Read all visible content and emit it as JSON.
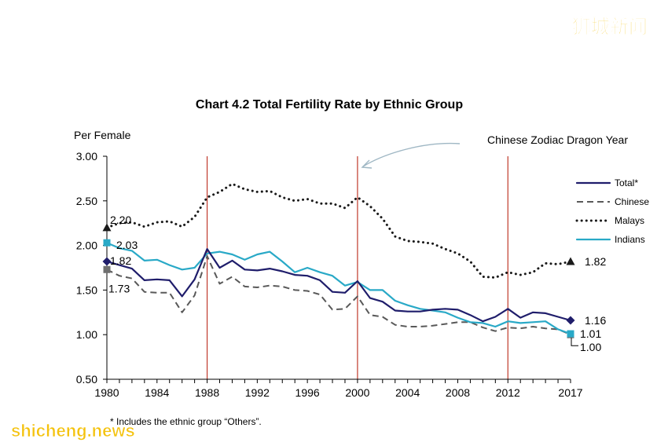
{
  "watermark_top": "狮城新闻",
  "watermark_bottom": "shicheng.news",
  "footnote": "*  Includes the ethnic group “Others”.",
  "chart_data": {
    "type": "line",
    "title": "Chart 4.2  Total Fertility Rate by Ethnic Group",
    "ylabel": "Per Female",
    "xlabel": "",
    "xlim": [
      1980,
      2017
    ],
    "ylim": [
      0.5,
      3.0
    ],
    "x_ticks": [
      "1980",
      "1984",
      "1988",
      "1992",
      "1996",
      "2000",
      "2004",
      "2008",
      "2012",
      "2017"
    ],
    "y_ticks": [
      "0.50",
      "1.00",
      "1.50",
      "2.00",
      "2.50",
      "3.00"
    ],
    "grid": false,
    "legend_position": "right",
    "annotation": "Chinese Zodiac Dragon Year",
    "dragon_years": [
      1988,
      2000,
      2012
    ],
    "colors": {
      "total": "#1f1d6b",
      "chinese": "#595959",
      "malays": "#1a1a1a",
      "indians": "#29a9c7",
      "dragon_line": "#c0392b",
      "arrow": "#9fb7c4"
    },
    "series": [
      {
        "key": "total",
        "name": "Total*",
        "style": "solid",
        "x": [
          1980,
          1981,
          1982,
          1983,
          1984,
          1985,
          1986,
          1987,
          1988,
          1989,
          1990,
          1991,
          1992,
          1993,
          1994,
          1995,
          1996,
          1997,
          1998,
          1999,
          2000,
          2001,
          2002,
          2003,
          2004,
          2005,
          2006,
          2007,
          2008,
          2009,
          2010,
          2011,
          2012,
          2013,
          2014,
          2015,
          2016,
          2017
        ],
        "values": [
          1.82,
          1.78,
          1.74,
          1.61,
          1.62,
          1.61,
          1.43,
          1.62,
          1.96,
          1.75,
          1.83,
          1.73,
          1.72,
          1.74,
          1.71,
          1.67,
          1.66,
          1.61,
          1.48,
          1.47,
          1.6,
          1.41,
          1.37,
          1.27,
          1.26,
          1.26,
          1.28,
          1.29,
          1.28,
          1.22,
          1.15,
          1.2,
          1.29,
          1.19,
          1.25,
          1.24,
          1.2,
          1.16
        ],
        "start_label": "1.82",
        "end_label": "1.16"
      },
      {
        "key": "chinese",
        "name": "Chinese",
        "style": "dashed",
        "x": [
          1980,
          1981,
          1982,
          1983,
          1984,
          1985,
          1986,
          1987,
          1988,
          1989,
          1990,
          1991,
          1992,
          1993,
          1994,
          1995,
          1996,
          1997,
          1998,
          1999,
          2000,
          2001,
          2002,
          2003,
          2004,
          2005,
          2006,
          2007,
          2008,
          2009,
          2010,
          2011,
          2012,
          2013,
          2014,
          2015,
          2016,
          2017
        ],
        "values": [
          1.73,
          1.66,
          1.63,
          1.48,
          1.47,
          1.47,
          1.25,
          1.44,
          1.88,
          1.57,
          1.65,
          1.54,
          1.53,
          1.55,
          1.54,
          1.5,
          1.49,
          1.45,
          1.28,
          1.29,
          1.43,
          1.22,
          1.2,
          1.11,
          1.09,
          1.09,
          1.1,
          1.12,
          1.14,
          1.14,
          1.08,
          1.04,
          1.08,
          1.07,
          1.09,
          1.07,
          1.06,
          1.0
        ],
        "start_label": "1.73",
        "end_label": "1.00"
      },
      {
        "key": "malays",
        "name": "Malays",
        "style": "dotted",
        "x": [
          1980,
          1981,
          1982,
          1983,
          1984,
          1985,
          1986,
          1987,
          1988,
          1989,
          1990,
          1991,
          1992,
          1993,
          1994,
          1995,
          1996,
          1997,
          1998,
          1999,
          2000,
          2001,
          2002,
          2003,
          2004,
          2005,
          2006,
          2007,
          2008,
          2009,
          2010,
          2011,
          2012,
          2013,
          2014,
          2015,
          2016,
          2017
        ],
        "values": [
          2.2,
          2.25,
          2.26,
          2.21,
          2.26,
          2.27,
          2.21,
          2.32,
          2.54,
          2.6,
          2.69,
          2.63,
          2.6,
          2.61,
          2.54,
          2.5,
          2.52,
          2.47,
          2.47,
          2.42,
          2.54,
          2.44,
          2.3,
          2.1,
          2.05,
          2.04,
          2.02,
          1.96,
          1.91,
          1.82,
          1.65,
          1.64,
          1.7,
          1.67,
          1.7,
          1.8,
          1.79,
          1.82
        ],
        "start_label": "2.20",
        "end_label": "1.82"
      },
      {
        "key": "indians",
        "name": "Indians",
        "style": "solid",
        "x": [
          1980,
          1981,
          1982,
          1983,
          1984,
          1985,
          1986,
          1987,
          1988,
          1989,
          1990,
          1991,
          1992,
          1993,
          1994,
          1995,
          1996,
          1997,
          1998,
          1999,
          2000,
          2001,
          2002,
          2003,
          2004,
          2005,
          2006,
          2007,
          2008,
          2009,
          2010,
          2011,
          2012,
          2013,
          2014,
          2015,
          2016,
          2017
        ],
        "values": [
          2.03,
          1.97,
          1.94,
          1.83,
          1.84,
          1.78,
          1.73,
          1.75,
          1.91,
          1.93,
          1.9,
          1.84,
          1.9,
          1.93,
          1.82,
          1.7,
          1.75,
          1.7,
          1.66,
          1.55,
          1.59,
          1.5,
          1.5,
          1.38,
          1.33,
          1.29,
          1.27,
          1.25,
          1.19,
          1.14,
          1.13,
          1.09,
          1.15,
          1.13,
          1.14,
          1.15,
          1.06,
          1.01
        ],
        "start_label": "2.03",
        "end_label": "1.01"
      }
    ]
  }
}
